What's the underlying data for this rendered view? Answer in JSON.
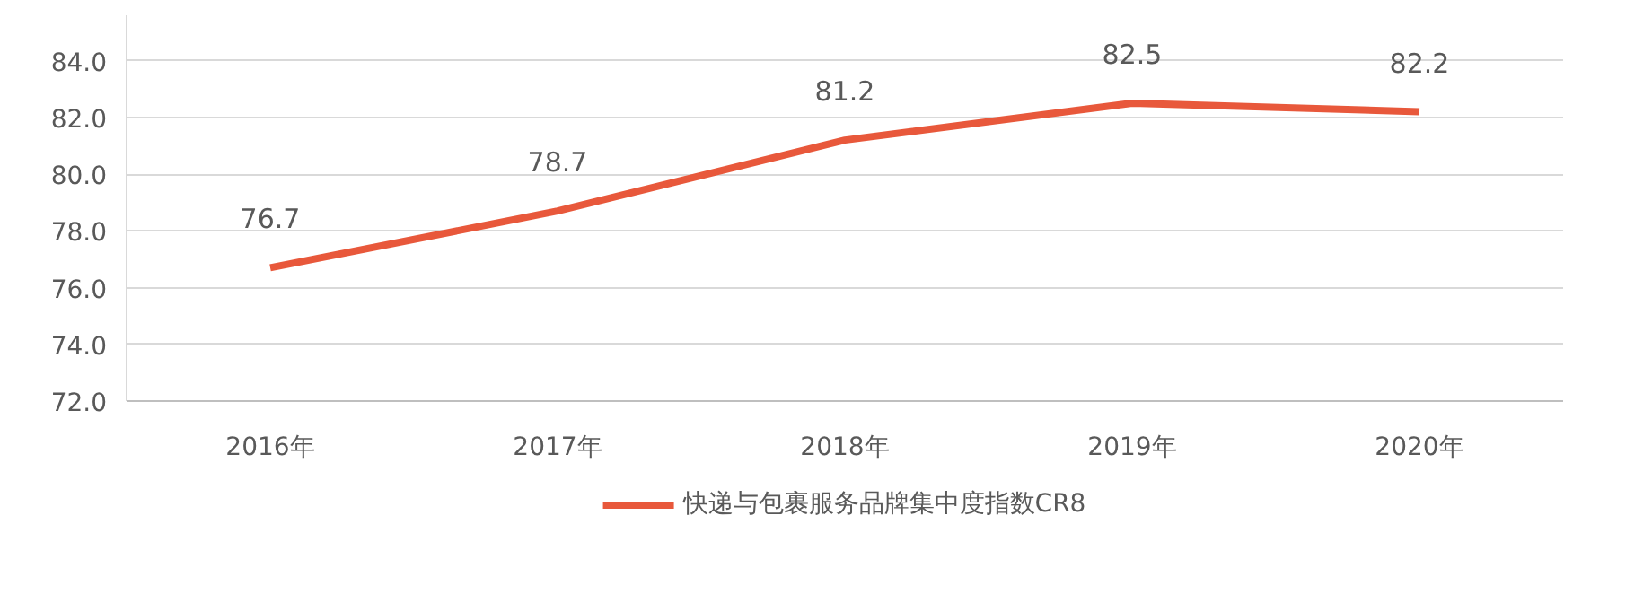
{
  "chart_data": {
    "type": "line",
    "categories": [
      "2016年",
      "2017年",
      "2018年",
      "2019年",
      "2020年"
    ],
    "series": [
      {
        "name": "快递与包裹服务品牌集中度指数CR8",
        "color": "#e8583b",
        "values": [
          76.7,
          78.7,
          81.2,
          82.5,
          82.2
        ]
      }
    ],
    "ylim": [
      72,
      85.6
    ],
    "yticks": [
      {
        "value": 72,
        "label": "72.0"
      },
      {
        "value": 74,
        "label": "74.0"
      },
      {
        "value": 76,
        "label": "76.0"
      },
      {
        "value": 78,
        "label": "78.0"
      },
      {
        "value": 80,
        "label": "80.0"
      },
      {
        "value": 82,
        "label": "82.0"
      },
      {
        "value": 84,
        "label": "84.0"
      }
    ],
    "grid": "y",
    "legend": "bottom",
    "data_labels": true,
    "marker": "none",
    "line_style": "solid"
  }
}
